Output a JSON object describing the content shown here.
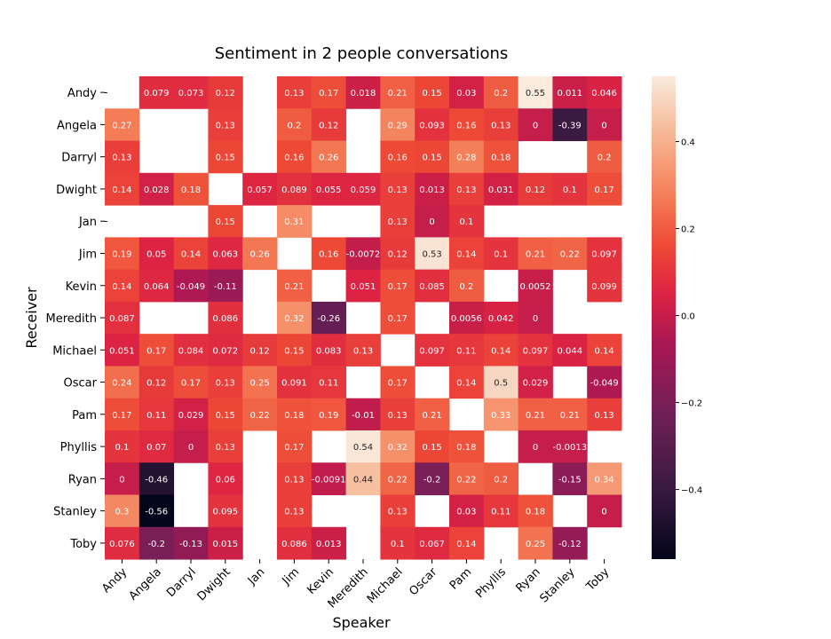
{
  "chart_data": {
    "type": "heatmap",
    "title": "Sentiment in 2 people conversations",
    "xlabel": "Speaker",
    "ylabel": "Receiver",
    "x_categories": [
      "Andy",
      "Angela",
      "Darryl",
      "Dwight",
      "Jan",
      "Jim",
      "Kevin",
      "Meredith",
      "Michael",
      "Oscar",
      "Pam",
      "Phyllis",
      "Ryan",
      "Stanley",
      "Toby"
    ],
    "y_categories": [
      "Andy",
      "Angela",
      "Darryl",
      "Dwight",
      "Jan",
      "Jim",
      "Kevin",
      "Meredith",
      "Michael",
      "Oscar",
      "Pam",
      "Phyllis",
      "Ryan",
      "Stanley",
      "Toby"
    ],
    "colorbar": {
      "min": -0.56,
      "max": 0.55,
      "ticks": [
        "0.4",
        "0.2",
        "0.0",
        "−0.2",
        "−0.4"
      ],
      "tick_values": [
        0.4,
        0.2,
        0.0,
        -0.2,
        -0.4
      ]
    },
    "empty_cell_marker": "-",
    "empty_marker_rows": [
      0,
      4
    ],
    "cells": [
      [
        null,
        "0.079",
        "0.073",
        "0.12",
        null,
        "0.13",
        "0.17",
        "0.018",
        "0.21",
        "0.15",
        "0.03",
        "0.2",
        "0.55",
        "0.011",
        "0.046"
      ],
      [
        "0.27",
        null,
        null,
        "0.13",
        null,
        "0.2",
        "0.12",
        null,
        "0.29",
        "0.093",
        "0.16",
        "0.13",
        "0",
        "-0.39",
        "0"
      ],
      [
        "0.13",
        null,
        null,
        "0.15",
        null,
        "0.16",
        "0.26",
        null,
        "0.16",
        "0.15",
        "0.28",
        "0.18",
        null,
        null,
        "0.2"
      ],
      [
        "0.14",
        "0.028",
        "0.18",
        null,
        "0.057",
        "0.089",
        "0.055",
        "0.059",
        "0.13",
        "0.013",
        "0.13",
        "0.031",
        "0.12",
        "0.1",
        "0.17"
      ],
      [
        null,
        null,
        null,
        "0.15",
        null,
        "0.31",
        null,
        null,
        "0.13",
        "0",
        "0.1",
        null,
        null,
        null,
        null
      ],
      [
        "0.19",
        "0.05",
        "0.14",
        "0.063",
        "0.26",
        null,
        "0.16",
        "-0.0072",
        "0.12",
        "0.53",
        "0.14",
        "0.1",
        "0.21",
        "0.22",
        "0.097"
      ],
      [
        "0.14",
        "0.064",
        "-0.049",
        "-0.11",
        null,
        "0.21",
        null,
        "0.051",
        "0.17",
        "0.085",
        "0.2",
        null,
        "0.0052",
        null,
        "0.099"
      ],
      [
        "0.087",
        null,
        null,
        "0.086",
        null,
        "0.32",
        "-0.26",
        null,
        "0.17",
        null,
        "0.0056",
        "0.042",
        "0",
        null,
        null
      ],
      [
        "0.051",
        "0.17",
        "0.084",
        "0.072",
        "0.12",
        "0.15",
        "0.083",
        "0.13",
        null,
        "0.097",
        "0.11",
        "0.14",
        "0.097",
        "0.044",
        "0.14"
      ],
      [
        "0.24",
        "0.12",
        "0.17",
        "0.13",
        "0.25",
        "0.091",
        "0.11",
        null,
        "0.17",
        null,
        "0.14",
        "0.5",
        "0.029",
        null,
        "-0.049"
      ],
      [
        "0.17",
        "0.11",
        "0.029",
        "0.15",
        "0.22",
        "0.18",
        "0.19",
        "-0.01",
        "0.13",
        "0.21",
        null,
        "0.33",
        "0.21",
        "0.21",
        "0.13"
      ],
      [
        "0.1",
        "0.07",
        "0",
        "0.13",
        null,
        "0.17",
        null,
        "0.54",
        "0.32",
        "0.15",
        "0.18",
        null,
        "0",
        "-0.0013",
        null
      ],
      [
        "0",
        "-0.46",
        null,
        "0.06",
        null,
        "0.13",
        "-0.0091",
        "0.44",
        "0.22",
        "-0.2",
        "0.22",
        "0.2",
        null,
        "-0.15",
        "0.34"
      ],
      [
        "0.3",
        "-0.56",
        null,
        "0.095",
        null,
        "0.13",
        null,
        null,
        "0.13",
        null,
        "0.03",
        "0.11",
        "0.18",
        null,
        "0"
      ],
      [
        "0.076",
        "-0.2",
        "-0.13",
        "0.015",
        null,
        "0.086",
        "0.013",
        null,
        "0.1",
        "0.067",
        "0.14",
        null,
        "0.25",
        "-0.12",
        null
      ]
    ]
  }
}
